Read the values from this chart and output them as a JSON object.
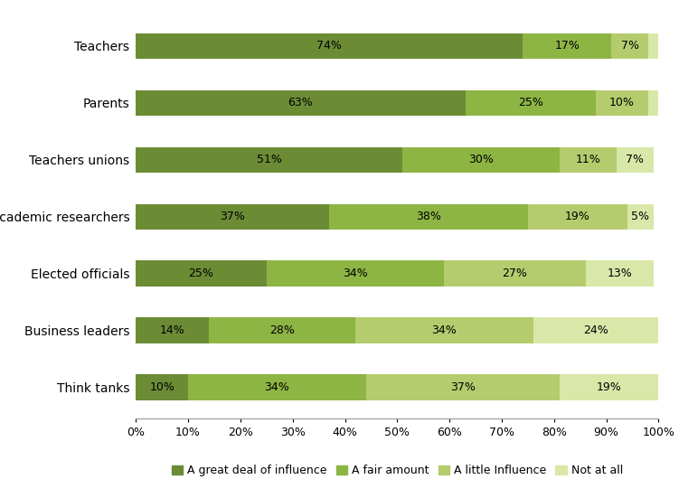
{
  "categories": [
    "Teachers",
    "Parents",
    "Teachers unions",
    "Academic researchers",
    "Elected officials",
    "Business leaders",
    "Think tanks"
  ],
  "series": {
    "A great deal of influence": [
      74,
      63,
      51,
      37,
      25,
      14,
      10
    ],
    "A fair amount": [
      17,
      25,
      30,
      38,
      34,
      28,
      34
    ],
    "A little Influence": [
      7,
      10,
      11,
      19,
      27,
      34,
      37
    ],
    "Not at all": [
      2,
      2,
      7,
      5,
      13,
      24,
      19
    ]
  },
  "colors": {
    "A great deal of influence": "#6b8c35",
    "A fair amount": "#8db544",
    "A little Influence": "#b5cc6e",
    "Not at all": "#d9e8a8"
  },
  "legend_labels": [
    "A great deal of influence",
    "A fair amount",
    "A little Influence",
    "Not at all"
  ],
  "xlim": [
    0,
    100
  ],
  "bar_height": 0.45,
  "background_color": "#ffffff",
  "label_fontsize": 9,
  "legend_fontsize": 9,
  "tick_fontsize": 9,
  "ylabel_fontsize": 10,
  "min_label_val": 3
}
